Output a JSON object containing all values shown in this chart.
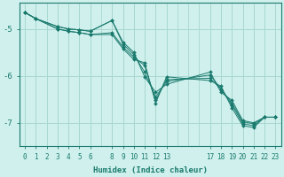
{
  "xlabel": "Humidex (Indice chaleur)",
  "background_color": "#cff0ec",
  "line_color": "#1a7a6e",
  "grid_color": "#a8d8d0",
  "xlim": [
    -0.5,
    23.5
  ],
  "ylim": [
    -7.5,
    -4.45
  ],
  "yticks": [
    -7,
    -6,
    -5
  ],
  "xtick_positions": [
    0,
    1,
    2,
    3,
    4,
    5,
    6,
    8,
    9,
    10,
    11,
    12,
    13,
    17,
    18,
    19,
    20,
    21,
    22,
    23
  ],
  "xtick_labels": [
    "0",
    "1",
    "2",
    "3",
    "4",
    "5",
    "6",
    "8",
    "9",
    "10",
    "11",
    "12",
    "13",
    "17",
    "18",
    "19",
    "20",
    "21",
    "22",
    "23"
  ],
  "lines": [
    [
      [
        0,
        -4.65
      ],
      [
        1,
        -4.78
      ],
      [
        3,
        -4.95
      ],
      [
        4,
        -5.0
      ],
      [
        5,
        -5.02
      ],
      [
        6,
        -5.05
      ],
      [
        8,
        -4.82
      ],
      [
        9,
        -5.28
      ],
      [
        10,
        -5.5
      ],
      [
        11,
        -6.02
      ],
      [
        12,
        -6.35
      ],
      [
        13,
        -6.18
      ],
      [
        17,
        -5.92
      ],
      [
        18,
        -6.35
      ],
      [
        19,
        -6.52
      ],
      [
        20,
        -6.95
      ],
      [
        21,
        -7.0
      ],
      [
        22,
        -6.88
      ],
      [
        23,
        -6.88
      ]
    ],
    [
      [
        0,
        -4.65
      ],
      [
        1,
        -4.78
      ],
      [
        3,
        -4.95
      ],
      [
        4,
        -5.0
      ],
      [
        5,
        -5.02
      ],
      [
        6,
        -5.05
      ],
      [
        8,
        -4.82
      ],
      [
        9,
        -5.32
      ],
      [
        10,
        -5.55
      ],
      [
        11,
        -5.92
      ],
      [
        12,
        -6.45
      ],
      [
        13,
        -6.12
      ],
      [
        17,
        -5.98
      ],
      [
        18,
        -6.28
      ],
      [
        19,
        -6.58
      ],
      [
        20,
        -6.98
      ],
      [
        21,
        -7.02
      ],
      [
        22,
        -6.88
      ],
      [
        23,
        -6.88
      ]
    ],
    [
      [
        0,
        -4.65
      ],
      [
        1,
        -4.78
      ],
      [
        3,
        -5.0
      ],
      [
        4,
        -5.05
      ],
      [
        5,
        -5.08
      ],
      [
        6,
        -5.12
      ],
      [
        8,
        -5.08
      ],
      [
        9,
        -5.38
      ],
      [
        10,
        -5.6
      ],
      [
        11,
        -5.78
      ],
      [
        12,
        -6.52
      ],
      [
        13,
        -6.08
      ],
      [
        17,
        -6.05
      ],
      [
        18,
        -6.28
      ],
      [
        19,
        -6.62
      ],
      [
        20,
        -7.02
      ],
      [
        21,
        -7.06
      ],
      [
        22,
        -6.88
      ],
      [
        23,
        -6.88
      ]
    ],
    [
      [
        0,
        -4.65
      ],
      [
        1,
        -4.78
      ],
      [
        3,
        -5.0
      ],
      [
        4,
        -5.05
      ],
      [
        5,
        -5.08
      ],
      [
        6,
        -5.12
      ],
      [
        8,
        -5.12
      ],
      [
        9,
        -5.42
      ],
      [
        10,
        -5.65
      ],
      [
        11,
        -5.72
      ],
      [
        12,
        -6.58
      ],
      [
        13,
        -6.02
      ],
      [
        17,
        -6.1
      ],
      [
        18,
        -6.22
      ],
      [
        19,
        -6.68
      ],
      [
        20,
        -7.06
      ],
      [
        21,
        -7.1
      ],
      [
        22,
        -6.88
      ],
      [
        23,
        -6.88
      ]
    ]
  ]
}
